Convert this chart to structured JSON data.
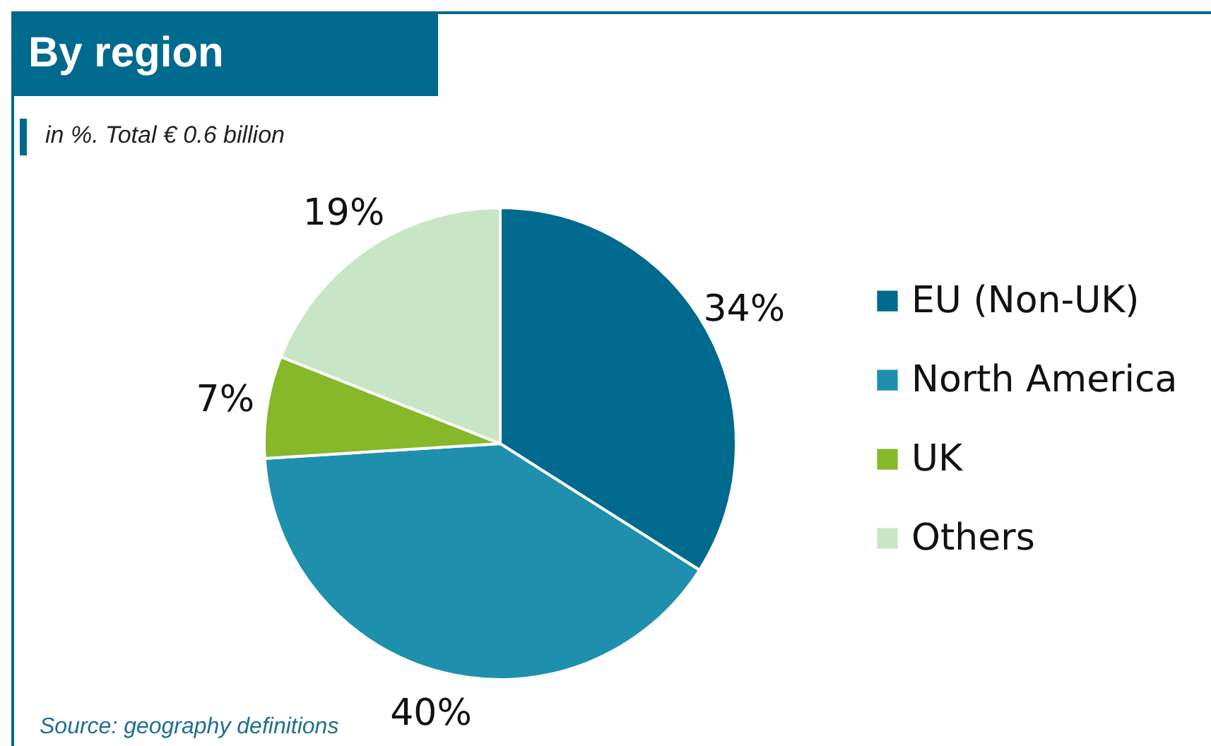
{
  "chart_data": {
    "type": "pie",
    "title": "By region",
    "subtitle": "in %. Total € 0.6 billion",
    "categories": [
      "EU (Non-UK)",
      "North America",
      "UK",
      "Others"
    ],
    "values": [
      34,
      40,
      7,
      19
    ],
    "colors": [
      "#006a8e",
      "#1e90ad",
      "#86b82a",
      "#c8e6c5"
    ],
    "value_labels": [
      "34%",
      "40%",
      "7%",
      "19%"
    ],
    "legend": "right",
    "annotations": [
      "Source: geography definitions"
    ]
  }
}
